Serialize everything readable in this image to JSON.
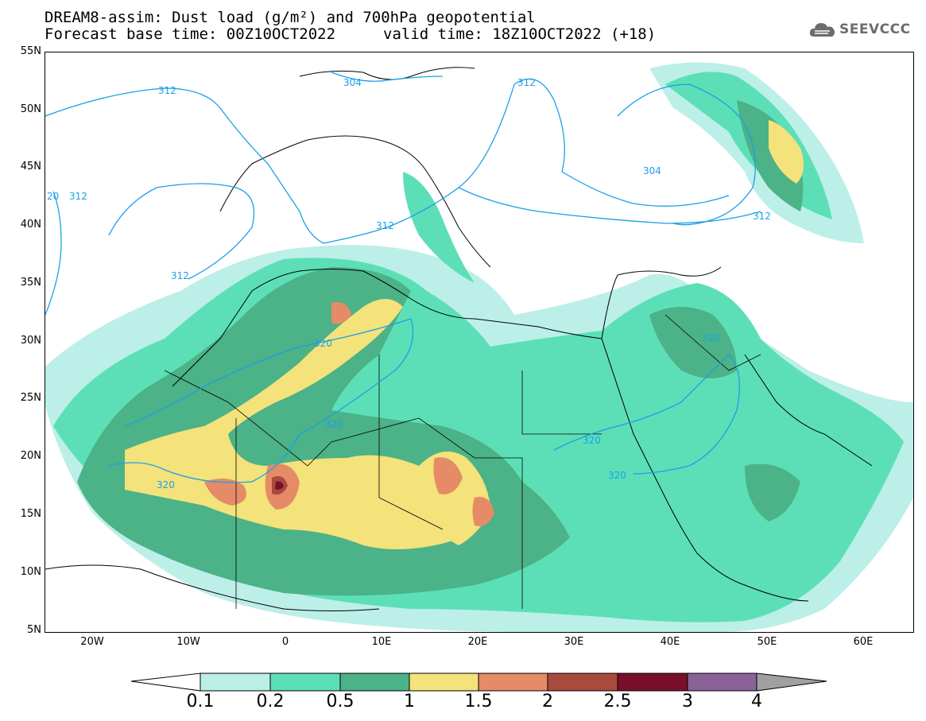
{
  "header": {
    "title_line1": "DREAM8-assim: Dust load (g/m²) and 700hPa geopotential",
    "title_line2": "Forecast base time: 00Z10OCT2022",
    "valid_time": "valid time: 18Z10OCT2022 (+18)",
    "logo_text": "SEEVCCC"
  },
  "map": {
    "lat_labels": [
      "55N",
      "50N",
      "45N",
      "40N",
      "35N",
      "30N",
      "25N",
      "20N",
      "15N",
      "10N",
      "5N"
    ],
    "lon_labels": [
      "20W",
      "10W",
      "0",
      "10E",
      "20E",
      "30E",
      "40E",
      "50E",
      "60E"
    ],
    "contour_labels": [
      "312",
      "304",
      "312",
      "304",
      "312",
      "312",
      "312",
      "312",
      "320",
      "320",
      "320",
      "320",
      "320",
      "320",
      "20"
    ]
  },
  "colorbar": {
    "levels": [
      "0.1",
      "0.2",
      "0.5",
      "1",
      "1.5",
      "2",
      "2.5",
      "3",
      "4"
    ],
    "colors": [
      "#bcefe8",
      "#5cdfb7",
      "#4cb287",
      "#f4e27a",
      "#e58b68",
      "#a94a3c",
      "#7a0f2a",
      "#8a6298"
    ]
  },
  "legend": {
    "dust_colors": [
      "#bcefe8",
      "#5cdfb7",
      "#4cb287",
      "#f4e27a",
      "#e58b68",
      "#a94a3c",
      "#7a0f2a"
    ],
    "contour_color": "#1aa0e8"
  }
}
